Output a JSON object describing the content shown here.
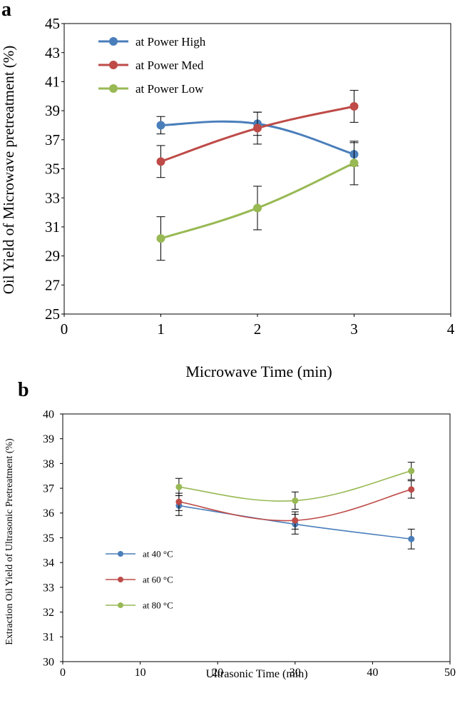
{
  "chart_data": [
    {
      "panel_label": "a",
      "type": "line",
      "xlabel": "Microwave Time (min)",
      "ylabel": "Oil Yield of Microwave pretreatment (%)",
      "xlim": [
        0,
        4
      ],
      "ylim": [
        25,
        45
      ],
      "x_ticks": [
        0,
        1,
        2,
        3,
        4
      ],
      "y_ticks": [
        25,
        27,
        29,
        31,
        33,
        35,
        37,
        39,
        41,
        43,
        45
      ],
      "grid": false,
      "legend_position": "top-left",
      "series": [
        {
          "name": "at Power High",
          "color": "#4a7ebb",
          "x": [
            1,
            2,
            3
          ],
          "y": [
            38.0,
            38.1,
            36.0
          ],
          "error": [
            0.6,
            0.8,
            0.8
          ]
        },
        {
          "name": "at Power Med",
          "color": "#be4b48",
          "x": [
            1,
            2,
            3
          ],
          "y": [
            35.5,
            37.8,
            39.3
          ],
          "error": [
            1.1,
            1.1,
            1.1
          ]
        },
        {
          "name": "at Power Low",
          "color": "#98b954",
          "x": [
            1,
            2,
            3
          ],
          "y": [
            30.2,
            32.3,
            35.4
          ],
          "error": [
            1.5,
            1.5,
            1.5
          ]
        }
      ]
    },
    {
      "panel_label": "b",
      "type": "line",
      "xlabel": "Ultrasonic Time (min)",
      "ylabel": "Extraction Oil Yield of Ultrasonic Pretreatment (%)",
      "xlim": [
        0,
        50
      ],
      "ylim": [
        30,
        40
      ],
      "x_ticks": [
        0,
        10,
        20,
        30,
        40,
        50
      ],
      "y_ticks": [
        30,
        31,
        32,
        33,
        34,
        35,
        36,
        37,
        38,
        39,
        40
      ],
      "grid": false,
      "legend_position": "bottom-left",
      "series": [
        {
          "name": "at 40 °C",
          "color": "#4a7ebb",
          "x": [
            15,
            30,
            45
          ],
          "y": [
            36.3,
            35.55,
            34.95
          ],
          "error": [
            0.4,
            0.4,
            0.4
          ]
        },
        {
          "name": "at 60 °C",
          "color": "#be4b48",
          "x": [
            15,
            30,
            45
          ],
          "y": [
            36.45,
            35.7,
            36.95
          ],
          "error": [
            0.35,
            0.35,
            0.35
          ]
        },
        {
          "name": "at 80 °C",
          "color": "#98b954",
          "x": [
            15,
            30,
            45
          ],
          "y": [
            37.05,
            36.5,
            37.7
          ],
          "error": [
            0.35,
            0.35,
            0.35
          ]
        }
      ]
    }
  ]
}
